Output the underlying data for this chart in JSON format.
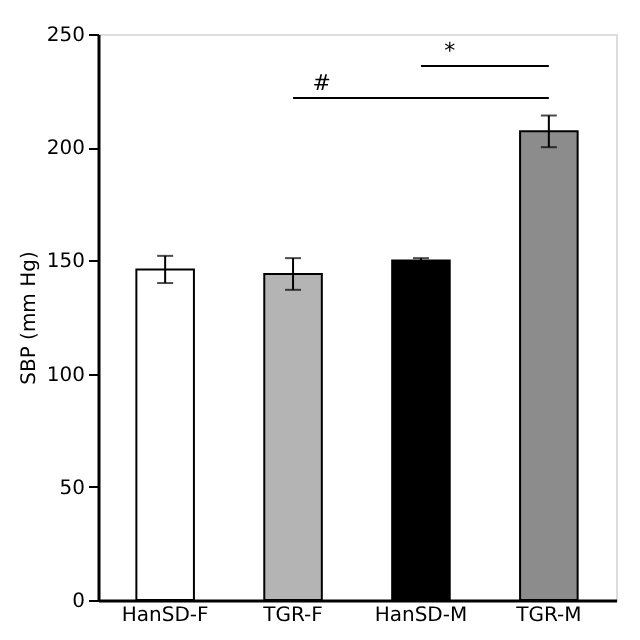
{
  "chart_data": {
    "type": "bar",
    "ylabel": "SBP (mm Hg)",
    "categories": [
      "HanSD-F",
      "TGR-F",
      "HanSD-M",
      "TGR-M"
    ],
    "values": [
      146,
      144,
      150,
      207
    ],
    "errors": [
      6,
      7,
      1,
      7
    ],
    "colors": [
      "#ffffff",
      "#b4b4b4",
      "#000000",
      "#8c8c8c"
    ],
    "ylim": [
      0,
      250
    ],
    "yticks": [
      0,
      50,
      100,
      150,
      200,
      250
    ],
    "grid": false,
    "legend": false,
    "annotations": [
      "#",
      "*"
    ]
  }
}
